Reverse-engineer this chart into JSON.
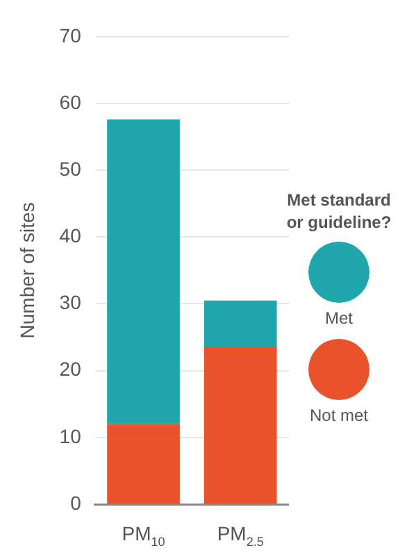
{
  "chart_data": {
    "type": "bar",
    "stacked": true,
    "ylabel": "Number of sites",
    "legend_title": "Met standard or guideline?",
    "categories": [
      "PM$_{10}$",
      "PM$_{2.5}$"
    ],
    "series": [
      {
        "name": "Not met",
        "color": "#e8532b",
        "values": [
          12,
          23.5
        ]
      },
      {
        "name": "Met",
        "color": "#20a6ad",
        "values": [
          45.6,
          7
        ]
      }
    ],
    "ylim": [
      0,
      70
    ],
    "yticks": [
      0,
      10,
      20,
      30,
      40,
      50,
      60,
      70
    ],
    "grid": "y",
    "legend": "right"
  }
}
